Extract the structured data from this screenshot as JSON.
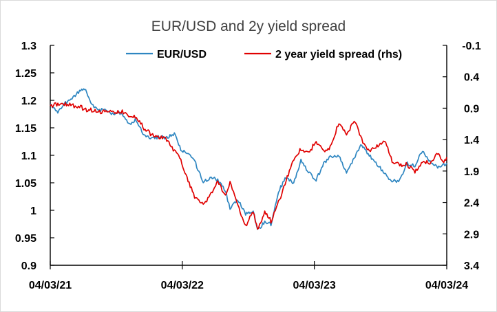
{
  "chart_data": {
    "type": "line",
    "title": "EUR/USD and 2y yield spread",
    "x_tick_labels": [
      "04/03/21",
      "04/03/22",
      "04/03/23",
      "04/03/24"
    ],
    "x_range": [
      "04/03/21",
      "04/03/24"
    ],
    "y_left": {
      "tick_labels": [
        "1.3",
        "1.25",
        "1.2",
        "1.15",
        "1.1",
        "1.05",
        "1",
        "0.95",
        "0.9"
      ],
      "range": [
        0.9,
        1.3
      ]
    },
    "y_right": {
      "tick_labels": [
        "-0.1",
        "0.4",
        "0.9",
        "1.4",
        "1.9",
        "2.4",
        "2.9",
        "3.4"
      ],
      "range": [
        -0.1,
        3.4
      ],
      "inverted": true
    },
    "grid": false,
    "legend_position": "top",
    "series": [
      {
        "name": "EUR/USD",
        "axis": "left",
        "color": "#2e86c1",
        "points": [
          [
            "04/03/21",
            1.193
          ],
          [
            "2021-03-25",
            1.178
          ],
          [
            "2021-04-15",
            1.195
          ],
          [
            "2021-05-06",
            1.205
          ],
          [
            "2021-05-27",
            1.218
          ],
          [
            "2021-06-10",
            1.221
          ],
          [
            "2021-06-24",
            1.193
          ],
          [
            "2021-07-15",
            1.181
          ],
          [
            "2021-08-05",
            1.184
          ],
          [
            "2021-08-26",
            1.173
          ],
          [
            "2021-09-16",
            1.178
          ],
          [
            "2021-10-07",
            1.157
          ],
          [
            "2021-10-28",
            1.165
          ],
          [
            "2021-11-18",
            1.135
          ],
          [
            "2021-12-09",
            1.13
          ],
          [
            "2021-12-30",
            1.134
          ],
          [
            "2022-01-20",
            1.132
          ],
          [
            "2022-02-10",
            1.14
          ],
          [
            "2022-02-28",
            1.11
          ],
          [
            "2022-03-20",
            1.104
          ],
          [
            "2022-04-10",
            1.085
          ],
          [
            "2022-05-01",
            1.05
          ],
          [
            "2022-05-20",
            1.06
          ],
          [
            "2022-06-10",
            1.055
          ],
          [
            "2022-07-01",
            1.035
          ],
          [
            "2022-07-14",
            1.002
          ],
          [
            "2022-08-05",
            1.02
          ],
          [
            "2022-08-26",
            0.993
          ],
          [
            "2022-09-16",
            0.998
          ],
          [
            "2022-09-28",
            0.963
          ],
          [
            "2022-10-18",
            0.98
          ],
          [
            "2022-11-04",
            0.975
          ],
          [
            "2022-11-25",
            1.035
          ],
          [
            "2022-12-16",
            1.06
          ],
          [
            "2023-01-06",
            1.05
          ],
          [
            "2023-01-26",
            1.09
          ],
          [
            "2023-02-16",
            1.07
          ],
          [
            "2023-03-09",
            1.055
          ],
          [
            "2023-03-30",
            1.085
          ],
          [
            "2023-04-20",
            1.098
          ],
          [
            "2023-05-11",
            1.098
          ],
          [
            "2023-06-01",
            1.07
          ],
          [
            "2023-06-22",
            1.095
          ],
          [
            "2023-07-13",
            1.12
          ],
          [
            "2023-08-03",
            1.1
          ],
          [
            "2023-08-24",
            1.083
          ],
          [
            "2023-09-14",
            1.068
          ],
          [
            "2023-10-05",
            1.052
          ],
          [
            "2023-10-26",
            1.055
          ],
          [
            "2023-11-16",
            1.085
          ],
          [
            "2023-12-07",
            1.08
          ],
          [
            "2023-12-28",
            1.11
          ],
          [
            "2024-01-18",
            1.088
          ],
          [
            "2024-02-08",
            1.078
          ],
          [
            "2024-02-22",
            1.082
          ],
          [
            "04/03/24",
            1.086
          ]
        ]
      },
      {
        "name": "2 year yield spread (rhs)",
        "axis": "right",
        "color": "#e00000",
        "points": [
          [
            "04/03/21",
            0.86
          ],
          [
            "2021-03-25",
            0.84
          ],
          [
            "2021-04-15",
            0.83
          ],
          [
            "2021-05-06",
            0.86
          ],
          [
            "2021-05-27",
            0.88
          ],
          [
            "2021-06-10",
            0.93
          ],
          [
            "2021-06-24",
            0.92
          ],
          [
            "2021-07-15",
            0.97
          ],
          [
            "2021-08-05",
            0.93
          ],
          [
            "2021-08-26",
            0.98
          ],
          [
            "2021-09-16",
            0.95
          ],
          [
            "2021-10-07",
            1.01
          ],
          [
            "2021-10-28",
            1.04
          ],
          [
            "2021-11-18",
            1.22
          ],
          [
            "2021-12-09",
            1.32
          ],
          [
            "2021-12-30",
            1.36
          ],
          [
            "2022-01-20",
            1.4
          ],
          [
            "2022-02-10",
            1.58
          ],
          [
            "2022-02-28",
            1.72
          ],
          [
            "2022-03-20",
            2.05
          ],
          [
            "2022-04-10",
            2.35
          ],
          [
            "2022-05-01",
            2.42
          ],
          [
            "2022-05-20",
            2.3
          ],
          [
            "2022-06-10",
            2.08
          ],
          [
            "2022-07-01",
            2.28
          ],
          [
            "2022-07-14",
            2.08
          ],
          [
            "2022-08-05",
            2.45
          ],
          [
            "2022-08-26",
            2.78
          ],
          [
            "2022-09-16",
            2.55
          ],
          [
            "2022-09-28",
            2.85
          ],
          [
            "2022-10-18",
            2.55
          ],
          [
            "2022-11-04",
            2.7
          ],
          [
            "2022-11-25",
            2.4
          ],
          [
            "2022-12-16",
            2.05
          ],
          [
            "2023-01-06",
            1.7
          ],
          [
            "2023-01-26",
            1.55
          ],
          [
            "2023-02-16",
            1.62
          ],
          [
            "2023-03-09",
            1.42
          ],
          [
            "2023-03-30",
            1.6
          ],
          [
            "2023-04-20",
            1.5
          ],
          [
            "2023-05-11",
            1.12
          ],
          [
            "2023-06-01",
            1.33
          ],
          [
            "2023-06-22",
            1.08
          ],
          [
            "2023-07-13",
            1.4
          ],
          [
            "2023-08-03",
            1.6
          ],
          [
            "2023-08-24",
            1.5
          ],
          [
            "2023-09-14",
            1.4
          ],
          [
            "2023-10-05",
            1.75
          ],
          [
            "2023-10-26",
            1.8
          ],
          [
            "2023-11-16",
            1.8
          ],
          [
            "2023-12-07",
            1.92
          ],
          [
            "2023-12-28",
            1.75
          ],
          [
            "2024-01-18",
            1.78
          ],
          [
            "2024-02-08",
            1.6
          ],
          [
            "2024-02-22",
            1.78
          ],
          [
            "04/03/24",
            1.68
          ]
        ]
      }
    ]
  }
}
